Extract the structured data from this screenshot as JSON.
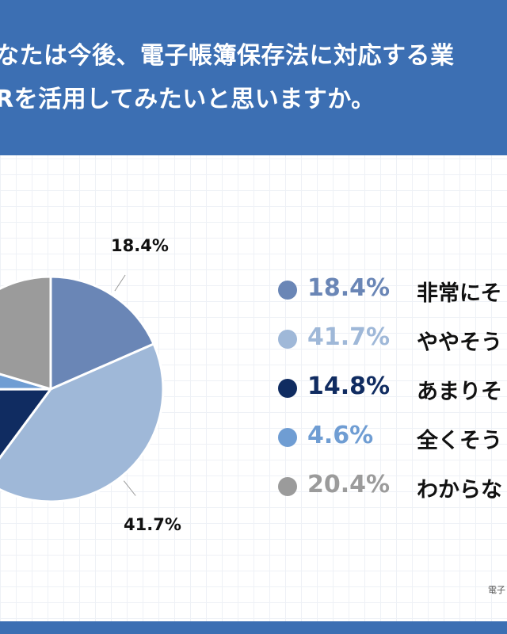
{
  "header": {
    "title_line1": "なたは今後、電子帳簿保存法に対応する業",
    "title_line2": "Rを活用してみたいと思いますか。"
  },
  "chart_data": {
    "type": "pie",
    "slices": [
      {
        "label": "非常にそ",
        "value": 18.4,
        "value_label": "18.4%",
        "color": "#6a86b6"
      },
      {
        "label": "ややそう",
        "value": 41.7,
        "value_label": "41.7%",
        "color": "#9fb8d8"
      },
      {
        "label": "あまりそ",
        "value": 14.8,
        "value_label": "14.8%",
        "color": "#102c61"
      },
      {
        "label": "全くそう",
        "value": 4.6,
        "value_label": "4.6%",
        "color": "#6f9dd3"
      },
      {
        "label": "わからな",
        "value": 20.4,
        "value_label": "20.4%",
        "color": "#9b9b9b"
      }
    ],
    "data_labels": [
      {
        "text": "18.4%",
        "slice": 0
      },
      {
        "text": "41.7%",
        "slice": 1
      }
    ],
    "legend_position": "right"
  },
  "credit": "電子"
}
